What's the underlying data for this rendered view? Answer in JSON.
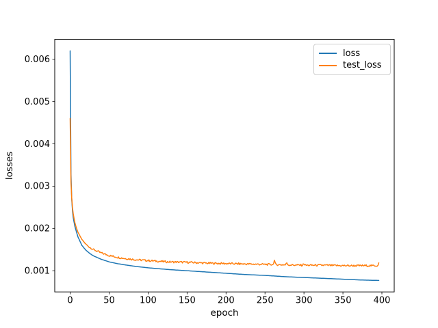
{
  "figure": {
    "background": "#ffffff"
  },
  "chart_data": {
    "type": "line",
    "title": "",
    "xlabel": "epoch",
    "ylabel": "losses",
    "xlim": [
      -19.8,
      415.8
    ],
    "ylim": [
      0.000499,
      0.006472
    ],
    "xticks": [
      0,
      50,
      100,
      150,
      200,
      250,
      300,
      350,
      400
    ],
    "yticks": {
      "values": [
        0.001,
        0.002,
        0.003,
        0.004,
        0.005,
        0.006
      ],
      "labels": [
        "0.001",
        "0.002",
        "0.003",
        "0.004",
        "0.005",
        "0.006"
      ]
    },
    "grid": false,
    "legend_position": "upper right",
    "x_max_epoch": 396,
    "series": [
      {
        "name": "loss",
        "color": "#1f77b4",
        "x": [
          0,
          1,
          2,
          3,
          4,
          6,
          8,
          10,
          15,
          20,
          25,
          30,
          40,
          50,
          60,
          70,
          85,
          100,
          125,
          150,
          175,
          200,
          225,
          250,
          275,
          300,
          325,
          350,
          375,
          396
        ],
        "y": [
          0.0062,
          0.0033,
          0.0027,
          0.0024,
          0.00225,
          0.00205,
          0.00192,
          0.0018,
          0.0016,
          0.00149,
          0.00141,
          0.00135,
          0.00127,
          0.00121,
          0.00117,
          0.00114,
          0.0011,
          0.00107,
          0.00103,
          0.001,
          0.00097,
          0.00094,
          0.00091,
          0.00089,
          0.00086,
          0.00084,
          0.00082,
          0.0008,
          0.00078,
          0.00077
        ],
        "noise_amplitude": 0,
        "noise_start_epoch": 0,
        "spikes": []
      },
      {
        "name": "test_loss",
        "color": "#ff7f0e",
        "x": [
          0,
          1,
          2,
          3,
          4,
          6,
          8,
          10,
          15,
          20,
          25,
          30,
          40,
          50,
          60,
          70,
          85,
          100,
          125,
          150,
          175,
          200,
          225,
          250,
          275,
          300,
          325,
          350,
          375,
          396
        ],
        "y": [
          0.0046,
          0.0031,
          0.00272,
          0.00248,
          0.00234,
          0.00214,
          0.00201,
          0.00191,
          0.00174,
          0.00163,
          0.00155,
          0.0015,
          0.00142,
          0.00136,
          0.00132,
          0.00129,
          0.00126,
          0.00124,
          0.00121,
          0.0012,
          0.00118,
          0.00117,
          0.00116,
          0.00115,
          0.00114,
          0.00113,
          0.00113,
          0.00112,
          0.00112,
          0.00112
        ],
        "noise_amplitude": 2.2e-05,
        "noise_start_epoch": 12,
        "spikes": [
          {
            "x": 262,
            "dy": 0.0001
          },
          {
            "x": 278,
            "dy": 5e-05
          },
          {
            "x": 300,
            "dy": 4e-05
          },
          {
            "x": 396,
            "dy": 6e-05
          }
        ]
      }
    ]
  }
}
